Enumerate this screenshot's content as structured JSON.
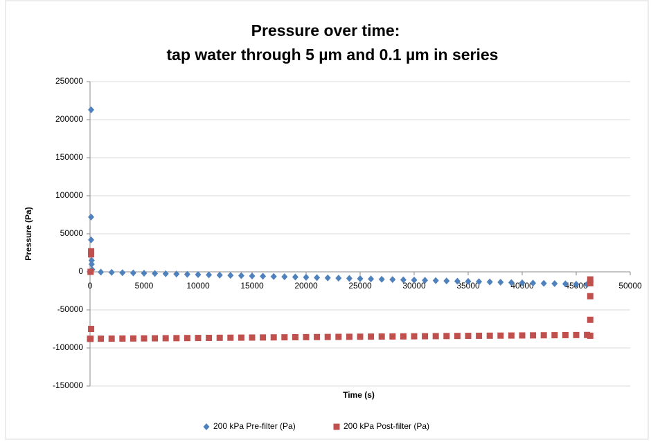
{
  "chart_data": {
    "type": "scatter",
    "title": "Pressure over time:",
    "subtitle": "tap water through 5 µm and 0.1 µm in series",
    "x_label": "Time (s)",
    "y_label": "Pressure (Pa)",
    "xlim": [
      0,
      50000
    ],
    "xticks": [
      0,
      5000,
      10000,
      15000,
      20000,
      25000,
      30000,
      35000,
      40000,
      45000,
      50000
    ],
    "ylim": [
      -150000,
      250000
    ],
    "yticks": [
      -150000,
      -100000,
      -50000,
      0,
      50000,
      100000,
      150000,
      200000,
      250000
    ],
    "grid": true,
    "legend": "bottom",
    "series": [
      {
        "name": "200 kPa Pre-filter (Pa)",
        "color": "#4f81bd",
        "marker": "diamond",
        "x": [
          100,
          100,
          100,
          150,
          150,
          200,
          0,
          1000,
          2000,
          3000,
          4000,
          5000,
          6000,
          7000,
          8000,
          9000,
          10000,
          11000,
          12000,
          13000,
          14000,
          15000,
          16000,
          17000,
          18000,
          19000,
          20000,
          21000,
          22000,
          23000,
          24000,
          25000,
          26000,
          27000,
          28000,
          29000,
          30000,
          31000,
          32000,
          33000,
          34000,
          35000,
          36000,
          37000,
          38000,
          39000,
          40000,
          41000,
          42000,
          43000,
          44000,
          45000,
          46000
        ],
        "values": [
          213000,
          72000,
          42000,
          15000,
          10000,
          3000,
          0,
          -360,
          -720,
          -1080,
          -1440,
          -1800,
          -2160,
          -2520,
          -2880,
          -3240,
          -3600,
          -3960,
          -4320,
          -4680,
          -5040,
          -5400,
          -5760,
          -6120,
          -6480,
          -6840,
          -7200,
          -7560,
          -7920,
          -8280,
          -8640,
          -9000,
          -9360,
          -9720,
          -10080,
          -10440,
          -10800,
          -11160,
          -11520,
          -11880,
          -12240,
          -12600,
          -12960,
          -13320,
          -13680,
          -14040,
          -14400,
          -14760,
          -15120,
          -15480,
          -15840,
          -16200,
          -16560
        ]
      },
      {
        "name": "200 kPa Post-filter (Pa)",
        "color": "#c0504d",
        "marker": "square",
        "x": [
          50,
          100,
          100,
          100,
          50,
          0,
          1000,
          2000,
          3000,
          4000,
          5000,
          6000,
          7000,
          8000,
          9000,
          10000,
          11000,
          12000,
          13000,
          14000,
          15000,
          16000,
          17000,
          18000,
          19000,
          20000,
          21000,
          22000,
          23000,
          24000,
          25000,
          26000,
          27000,
          28000,
          29000,
          30000,
          31000,
          32000,
          33000,
          34000,
          35000,
          36000,
          37000,
          38000,
          39000,
          40000,
          41000,
          42000,
          43000,
          44000,
          45000,
          46000,
          46300,
          46300,
          46300,
          46300,
          46300
        ],
        "values": [
          0,
          27000,
          23000,
          -75000,
          -88000,
          -88000,
          -87890,
          -87780,
          -87670,
          -87560,
          -87450,
          -87340,
          -87230,
          -87120,
          -87010,
          -86900,
          -86790,
          -86680,
          -86570,
          -86460,
          -86350,
          -86240,
          -86130,
          -86020,
          -85910,
          -85800,
          -85690,
          -85580,
          -85470,
          -85360,
          -85250,
          -85140,
          -85030,
          -84920,
          -84810,
          -84700,
          -84590,
          -84480,
          -84370,
          -84260,
          -84150,
          -84040,
          -83930,
          -83820,
          -83710,
          -83600,
          -83490,
          -83380,
          -83270,
          -83160,
          -83050,
          -82940,
          -10000,
          -15000,
          -32000,
          -63000,
          -84000
        ]
      }
    ]
  }
}
